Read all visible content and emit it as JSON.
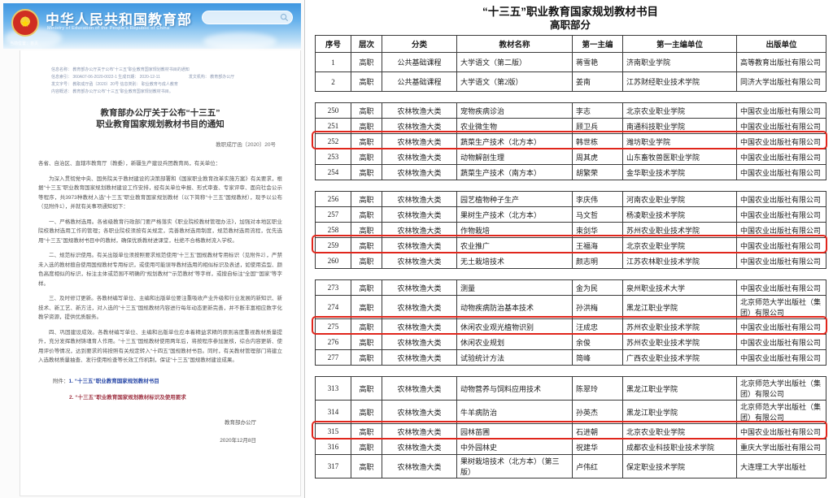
{
  "left_panel": {
    "site_header": {
      "title": "中华人民共和国教育部",
      "subtitle": "Ministry of Education of the People's Republic of China",
      "breadcrumb": "当前位置：首页",
      "search_icon": "search-icon"
    },
    "meta_lines": [
      "信息名称：  教育部办公厅关于公布“十三五”职业教育国家规划教材书目的通知",
      "信息索引：  360A07-06-2020-0022-1   生成日期：  2020-12-11　　　　　　　发文机构：  教育部办公厅",
      "发文字号：  教职成厅函〔2020〕20号  信息类别：  职业教育与成人教育",
      "内容概述：  教育部办公厅公布“十三五”职业教育国家规划教材书目。"
    ],
    "doc_title_line1": "教育部办公厅关于公布“十三五”",
    "doc_title_line2": "职业教育国家规划教材书目的通知",
    "doc_number": "教职成厅函〔2020〕20号",
    "salutation": "各省、自治区、直辖市教育厅（教委），新疆生产建设兵团教育局，有关单位：",
    "paragraphs": [
      "为深入贯彻党中央、国务院关于教材建设的决策部署和《国家职业教育改革实施方案》有关要求，根据“十三五”职业教育国家规划教材建设工作安排，经有关单位申报、形式审查、专家评审、面向社会公示等程序，共3973种教材入选“十三五”职业教育国家规划教材（以下简称“十三五”国规教材），现予以公布（见附件1），并就有关事项通知如下：",
      "一、严格教材选用。各省级教育行政部门要严格落实《职业院校教材管理办法》，加强对本地区职业院校教材选用工作的管理；各职业院校须按有关规定，完善教材选用制度，规范教材选用流程，优先选用“十三五”国规教材书目中的教材，确保优质教材进课堂，杜绝不合格教材流入学校。",
      "二、规范标识使用。有关出版单位须按照要求规范使用“十三五”国规教材专用标识（见附件2），严禁未入选的教材擅自使用国规教材专用标识，或使用可能误导教材选用的相似标识及表述，如使用造型、颜色高度相似的标识，标注主体或范围不明确的“规划教材”“示范教材”等字样，或擅自标注“全国”“国家”等字样。",
      "三、及时修订更新。各教材编写单位、主编和出版单位要注重吸收产业升级和行业发展的新知识、新技术、新工艺、新方法，对入选的“十三五”国规教材内容进行每年动态更新完善，并不断丰富相应数字化教学资源，提供优质服务。",
      "四、巩固建设成效。各教材编写单位、主编和出版单位应本着精益求精的原则高度重视教材质量提升，充分发挥教材铸魂育人作用。“十三五”国规教材使用两年后，将按程序参加复核，综合内容更新、使用评价等情况，达到要求的将按照有关规定转入“十四五”国规教材书目。同时，有关教材管理部门将建立入选教材质量抽查、发行使用检查等长效工作机制，保证“十三五”国规教材建设成果。"
    ],
    "attachments_label": "附件：",
    "attachments": [
      {
        "num": "1.",
        "label": "“十三五”职业教育国家规划教材书目"
      },
      {
        "num": "2.",
        "label": "“十三五”职业教育国家规划教材标识及使用要求"
      }
    ],
    "signature": "教育部办公厅",
    "date": "2020年12月8日"
  },
  "right_panel": {
    "title": "“十三五”职业教育国家规划教材书目",
    "subtitle": "高职部分",
    "highlight_color": "#e0261c",
    "table": {
      "columns": [
        "序号",
        "层次",
        "分类",
        "教材名称",
        "第一主编",
        "第一主编单位",
        "出版单位"
      ],
      "groups": [
        {
          "rows": [
            {
              "cells": [
                "1",
                "高职",
                "公共基础课程",
                "大学语文（第二版）",
                "蒋雪艳",
                "济南职业学院",
                "高等教育出版社有限公司"
              ],
              "highlight": false
            },
            {
              "cells": [
                "2",
                "高职",
                "公共基础课程",
                "大学语文（第2版）",
                "姜南",
                "江苏财经职业技术学院",
                "同济大学出版社有限公司"
              ],
              "highlight": false
            }
          ]
        },
        {
          "rows": [
            {
              "cells": [
                "250",
                "高职",
                "农林牧渔大类",
                "宠物疾病诊治",
                "李志",
                "北京农业职业学院",
                "中国农业出版社有限公司"
              ],
              "highlight": false
            },
            {
              "cells": [
                "251",
                "高职",
                "农林牧渔大类",
                "农业微生物",
                "顾卫兵",
                "南通科技职业学院",
                "中国农业出版社有限公司"
              ],
              "highlight": false
            },
            {
              "cells": [
                "252",
                "高职",
                "农林牧渔大类",
                "蔬菜生产技术（北方本）",
                "韩世栋",
                "潍坊职业学院",
                "中国农业出版社有限公司"
              ],
              "highlight": true
            },
            {
              "cells": [
                "253",
                "高职",
                "农林牧渔大类",
                "动物解剖生理",
                "周其虎",
                "山东畜牧兽医职业学院",
                "中国农业出版社有限公司"
              ],
              "highlight": false
            },
            {
              "cells": [
                "254",
                "高职",
                "农林牧渔大类",
                "蔬菜生产技术（南方本）",
                "胡繁荣",
                "金华职业技术学院",
                "中国农业出版社有限公司"
              ],
              "highlight": false
            }
          ]
        },
        {
          "rows": [
            {
              "cells": [
                "256",
                "高职",
                "农林牧渔大类",
                "园艺植物种子生产",
                "李庆伟",
                "河南农业职业学院",
                "中国农业出版社有限公司"
              ],
              "highlight": false
            },
            {
              "cells": [
                "257",
                "高职",
                "农林牧渔大类",
                "果树生产技术（北方本）",
                "马文哲",
                "杨凌职业技术学院",
                "中国农业出版社有限公司"
              ],
              "highlight": false
            },
            {
              "cells": [
                "258",
                "高职",
                "农林牧渔大类",
                "作物栽培",
                "束剑华",
                "苏州农业职业技术学院",
                "中国农业出版社有限公司"
              ],
              "highlight": false
            },
            {
              "cells": [
                "259",
                "高职",
                "农林牧渔大类",
                "农业推广",
                "王福海",
                "北京农业职业学院",
                "中国农业出版社有限公司"
              ],
              "highlight": true
            },
            {
              "cells": [
                "260",
                "高职",
                "农林牧渔大类",
                "无土栽培技术",
                "颜志明",
                "江苏农林职业技术学院",
                "中国农业出版社有限公司"
              ],
              "highlight": false
            }
          ]
        },
        {
          "rows": [
            {
              "cells": [
                "273",
                "高职",
                "农林牧渔大类",
                "测量",
                "金为民",
                "泉州职业技术大学",
                "中国农业出版社有限公司"
              ],
              "highlight": false
            },
            {
              "cells": [
                "274",
                "高职",
                "农林牧渔大类",
                "动物疾病防治基本技术",
                "孙洪梅",
                "黑龙江职业学院",
                "北京师范大学出版社（集团）有限公司"
              ],
              "highlight": false
            },
            {
              "cells": [
                "275",
                "高职",
                "农林牧渔大类",
                "休闲农业观光植物识别",
                "汪成忠",
                "苏州农业职业技术学院",
                "中国农业出版社有限公司"
              ],
              "highlight": true
            },
            {
              "cells": [
                "276",
                "高职",
                "农林牧渔大类",
                "休闲农业规划",
                "余俊",
                "苏州农业职业技术学院",
                "中国农业出版社有限公司"
              ],
              "highlight": false
            },
            {
              "cells": [
                "277",
                "高职",
                "农林牧渔大类",
                "试验统计方法",
                "简峰",
                "广西农业职业技术学院",
                "中国农业出版社有限公司"
              ],
              "highlight": false
            }
          ]
        },
        {
          "rows": [
            {
              "cells": [
                "313",
                "高职",
                "农林牧渔大类",
                "动物营养与饲料应用技术",
                "陈翠玲",
                "黑龙江职业学院",
                "北京师范大学出版社（集团）有限公司"
              ],
              "highlight": false
            },
            {
              "cells": [
                "314",
                "高职",
                "农林牧渔大类",
                "牛羊病防治",
                "孙英杰",
                "黑龙江职业学院",
                "北京师范大学出版社（集团）有限公司"
              ],
              "highlight": false
            },
            {
              "cells": [
                "315",
                "高职",
                "农林牧渔大类",
                "园林苗圃",
                "石进朝",
                "北京农业职业学院",
                "中国农业出版社有限公司"
              ],
              "highlight": true
            },
            {
              "cells": [
                "316",
                "高职",
                "农林牧渔大类",
                "中外园林史",
                "祝建华",
                "成都农业科技职业技术学院",
                "重庆大学出版社有限公司"
              ],
              "highlight": false
            },
            {
              "cells": [
                "317",
                "高职",
                "农林牧渔大类",
                "果树栽培技术（北方本）（第三版）",
                "卢伟红",
                "保定职业技术学院",
                "大连理工大学出版社"
              ],
              "highlight": false
            }
          ]
        }
      ]
    }
  }
}
